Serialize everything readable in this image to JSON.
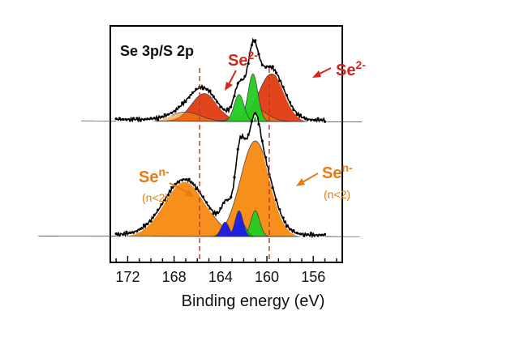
{
  "chart_data": {
    "type": "line",
    "title": "Se 3p/S 2p",
    "xlabel": "Binding energy (eV)",
    "ylabel": "",
    "xlim": [
      173.5,
      153.5
    ],
    "x_reversed": true,
    "xticks": [
      172,
      168,
      164,
      160,
      156
    ],
    "xtick_labels": [
      "172",
      "168",
      "164",
      "160",
      "156"
    ],
    "reference_lines_eV": [
      165.8,
      159.8
    ],
    "colors": {
      "se2": "#e03a10",
      "sen": "#f5890f",
      "s_green": "#22cc22",
      "s_blue": "#1a1aee",
      "envelope": "#ffffff",
      "data": "#000000",
      "guide": "#b03a2e",
      "label_red": "#d0281f",
      "label_orange": "#ea7a10"
    },
    "spectra": [
      {
        "name": "top",
        "components": [
          {
            "name": "Se 3p3/2 Se2- (A)",
            "center": 159.6,
            "height": 0.62,
            "fwhm": 2.6,
            "color": "se2"
          },
          {
            "name": "Se 3p1/2 Se2- (A)",
            "center": 165.4,
            "height": 0.36,
            "fwhm": 2.6,
            "color": "se2"
          },
          {
            "name": "Se 3p3/2 Se2- (B)",
            "center": 161.2,
            "height": 0.18,
            "fwhm": 2.6,
            "color": "sen"
          },
          {
            "name": "Se 3p1/2 Se2- (B)",
            "center": 167.0,
            "height": 0.12,
            "fwhm": 3.0,
            "color": "sen"
          },
          {
            "name": "S 2p3/2",
            "center": 161.2,
            "height": 0.62,
            "fwhm": 1.0,
            "color": "s_green"
          },
          {
            "name": "S 2p1/2",
            "center": 162.4,
            "height": 0.35,
            "fwhm": 1.0,
            "color": "s_green"
          }
        ]
      },
      {
        "name": "bottom",
        "components": [
          {
            "name": "Se 3p3/2 Sen- (n<2)",
            "center": 161.0,
            "height": 1.0,
            "fwhm": 3.0,
            "color": "sen"
          },
          {
            "name": "Se 3p1/2 Sen- (n<2)",
            "center": 167.1,
            "height": 0.58,
            "fwhm": 4.2,
            "color": "sen"
          },
          {
            "name": "S 2p3/2",
            "center": 161.0,
            "height": 0.27,
            "fwhm": 0.9,
            "color": "s_green"
          },
          {
            "name": "S 2p1/2",
            "center": 162.2,
            "height": 0.15,
            "fwhm": 0.9,
            "color": "s_green"
          },
          {
            "name": "S species 2p3/2",
            "center": 162.4,
            "height": 0.27,
            "fwhm": 0.8,
            "color": "s_blue"
          },
          {
            "name": "S species 2p1/2",
            "center": 163.6,
            "height": 0.15,
            "fwhm": 0.8,
            "color": "s_blue"
          }
        ]
      }
    ],
    "annotations": [
      {
        "id": "se2-left",
        "base": "Se",
        "sup": "2-",
        "sub": "",
        "color": "label_red"
      },
      {
        "id": "se2-right",
        "base": "Se",
        "sup": "2-",
        "sub": "",
        "color": "label_red"
      },
      {
        "id": "sen-left",
        "base": "Se",
        "sup": "n-",
        "sub": "(n<2)",
        "color": "label_orange"
      },
      {
        "id": "sen-right",
        "base": "Se",
        "sup": "n-",
        "sub": "(n<2)",
        "color": "label_orange"
      }
    ]
  }
}
